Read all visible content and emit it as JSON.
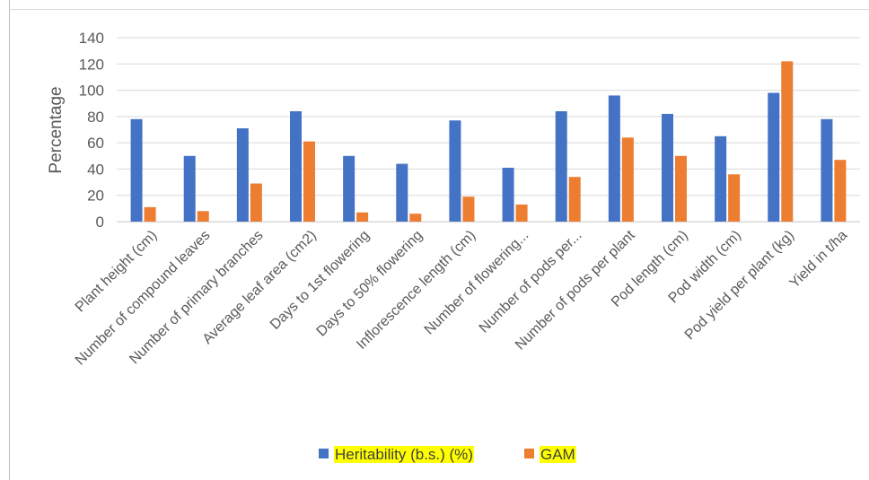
{
  "chart_data": {
    "type": "bar",
    "title": "",
    "xlabel": "",
    "ylabel": "Percentage",
    "ylim": [
      0,
      140
    ],
    "yticks": [
      0,
      20,
      40,
      60,
      80,
      100,
      120,
      140
    ],
    "grid": true,
    "legend_position": "bottom",
    "categories": [
      "Plant height (cm)",
      "Number of compound leaves",
      "Number of primary branches",
      "Average leaf area (cm2)",
      "Days to 1st flowering",
      "Days to 50% flowering",
      "Inflorescence length (cm)",
      "Number of flowering...",
      "Number of pods per...",
      "Number of pods per plant",
      "Pod length (cm)",
      "Pod width (cm)",
      "Pod yield per plant (kg)",
      "Yield in t/ha"
    ],
    "series": [
      {
        "name": "Heritability (b.s.) (%)",
        "color": "#4472C4",
        "values": [
          78,
          50,
          71,
          84,
          50,
          44,
          77,
          41,
          84,
          96,
          82,
          65,
          98,
          78
        ]
      },
      {
        "name": "GAM",
        "color": "#ED7D31",
        "values": [
          11,
          8,
          29,
          61,
          7,
          6,
          19,
          13,
          34,
          64,
          50,
          36,
          122,
          47
        ]
      }
    ],
    "legend_highlight_color": "#FFFF00"
  }
}
